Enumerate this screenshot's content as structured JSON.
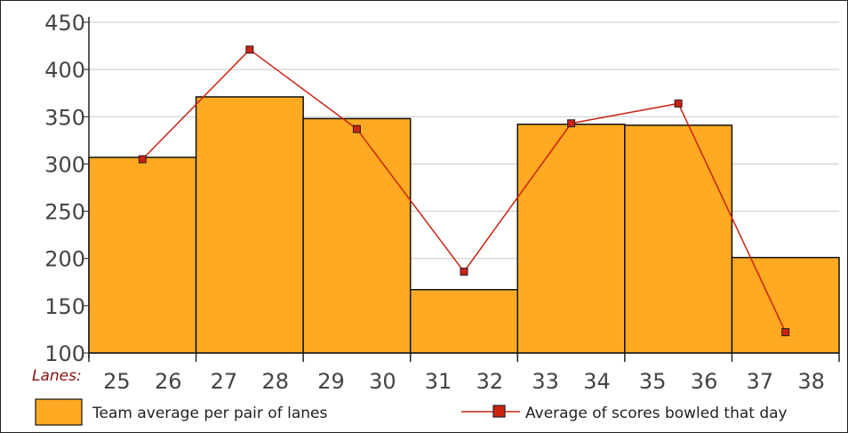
{
  "chart_data": {
    "type": "bar",
    "x_tick_prefix": "Lanes:",
    "lanes": [
      "25",
      "26",
      "27",
      "28",
      "29",
      "30",
      "31",
      "32",
      "33",
      "34",
      "35",
      "36",
      "37",
      "38"
    ],
    "categories": [
      "25-26",
      "27-28",
      "29-30",
      "31-32",
      "33-34",
      "35-36",
      "37-38"
    ],
    "ylim": [
      100,
      450
    ],
    "y_ticks": [
      100,
      150,
      200,
      250,
      300,
      350,
      400,
      450
    ],
    "grid": true,
    "legend_position": "bottom",
    "series": [
      {
        "name": "Team average per pair of lanes",
        "type": "bar",
        "values": [
          307,
          371,
          348,
          167,
          342,
          341,
          201
        ],
        "color": "#FFAA22"
      },
      {
        "name": "Average of scores bowled that day",
        "type": "line",
        "values": [
          305,
          421,
          337,
          186,
          343,
          364,
          122
        ],
        "color": "#CC2211"
      }
    ]
  }
}
